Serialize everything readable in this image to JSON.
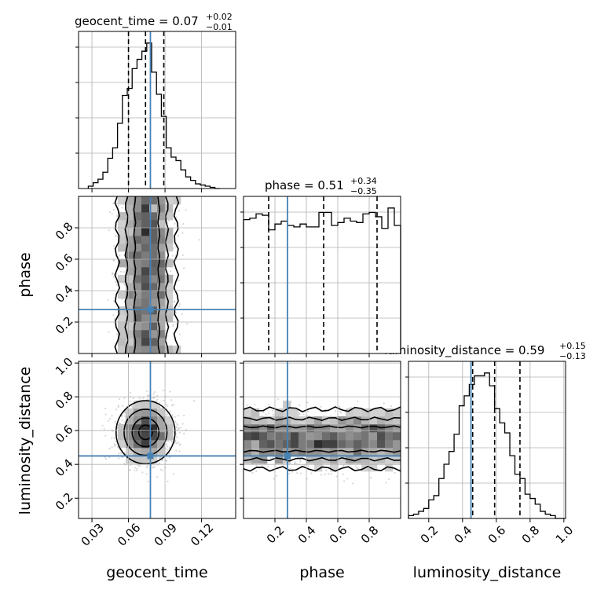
{
  "chart_data": {
    "type": "corner",
    "parameters": [
      "geocent_time",
      "phase",
      "luminosity_distance"
    ],
    "truths": {
      "geocent_time": 0.078,
      "phase": 0.28,
      "luminosity_distance": 0.45
    },
    "titles": {
      "geocent_time": {
        "label": "geocent_time = 0.07",
        "plus": "+0.02",
        "minus": "−0.01"
      },
      "phase": {
        "label": "phase = 0.51",
        "plus": "+0.34",
        "minus": "−0.35"
      },
      "luminosity_distance": {
        "label": "luminosity_distance = 0.59",
        "plus": "+0.15",
        "minus": "−0.13"
      }
    },
    "axis_labels": {
      "geocent_time": "geocent_time",
      "phase": "phase",
      "luminosity_distance": "luminosity_distance"
    },
    "ranges": {
      "geocent_time": [
        0.019,
        0.148
      ],
      "phase": [
        0.0,
        1.0
      ],
      "luminosity_distance": [
        0.08,
        1.01
      ]
    },
    "ticks": {
      "geocent_time": [
        "0.03",
        "0.06",
        "0.09",
        "0.12"
      ],
      "phase": [
        "0.2",
        "0.4",
        "0.6",
        "0.8"
      ],
      "luminosity_distance": [
        "0.2",
        "0.4",
        "0.6",
        "0.8",
        "1.0"
      ]
    },
    "quantiles": {
      "geocent_time": [
        0.06,
        0.074,
        0.089
      ],
      "phase": [
        0.16,
        0.51,
        0.85
      ],
      "luminosity_distance": [
        0.46,
        0.59,
        0.74
      ]
    },
    "histograms": {
      "geocent_time": {
        "edges": [
          0.027,
          0.031,
          0.035,
          0.039,
          0.043,
          0.047,
          0.051,
          0.055,
          0.059,
          0.063,
          0.067,
          0.071,
          0.075,
          0.079,
          0.083,
          0.087,
          0.091,
          0.095,
          0.099,
          0.103,
          0.107,
          0.111,
          0.115,
          0.119,
          0.123,
          0.127,
          0.131,
          0.135
        ],
        "counts": [
          2,
          5,
          8,
          14,
          26,
          35,
          56,
          80,
          86,
          103,
          111,
          118,
          125,
          100,
          81,
          62,
          35,
          27,
          24,
          16,
          10,
          7,
          4,
          3,
          2,
          1,
          0
        ]
      },
      "phase": {
        "edges": [
          0.0,
          0.04,
          0.08,
          0.12,
          0.16,
          0.2,
          0.24,
          0.28,
          0.32,
          0.36,
          0.4,
          0.44,
          0.48,
          0.52,
          0.56,
          0.6,
          0.64,
          0.68,
          0.72,
          0.76,
          0.8,
          0.84,
          0.88,
          0.92,
          0.96,
          1.0
        ],
        "counts": [
          0.92,
          0.93,
          0.96,
          0.95,
          0.85,
          0.89,
          0.91,
          0.88,
          0.87,
          0.89,
          0.87,
          0.87,
          0.97,
          0.97,
          0.88,
          0.9,
          0.93,
          0.91,
          0.9,
          0.96,
          0.97,
          0.94,
          0.86,
          1.0,
          0.88
        ]
      },
      "luminosity_distance": {
        "edges": [
          0.08,
          0.11,
          0.14,
          0.17,
          0.2,
          0.23,
          0.26,
          0.29,
          0.32,
          0.35,
          0.38,
          0.41,
          0.44,
          0.47,
          0.5,
          0.53,
          0.56,
          0.59,
          0.62,
          0.65,
          0.68,
          0.71,
          0.74,
          0.77,
          0.8,
          0.83,
          0.86,
          0.89,
          0.92,
          0.95,
          0.98,
          1.01
        ],
        "counts": [
          0.02,
          0.03,
          0.05,
          0.07,
          0.13,
          0.16,
          0.28,
          0.38,
          0.47,
          0.59,
          0.79,
          0.86,
          0.94,
          1.0,
          1.0,
          1.02,
          0.93,
          0.77,
          0.67,
          0.6,
          0.44,
          0.31,
          0.28,
          0.17,
          0.14,
          0.1,
          0.05,
          0.03,
          0.02,
          0.0,
          0.0
        ]
      }
    },
    "joint_modes": {
      "phase_vs_geocent_time": {
        "x_center": 0.075,
        "x_sigma": 0.011,
        "y_uniform": [
          0.0,
          1.0
        ]
      },
      "luminosity_distance_vs_geocent_time": {
        "x_center": 0.074,
        "x_sigma": 0.011,
        "y_center": 0.59,
        "y_sigma": 0.085
      },
      "luminosity_distance_vs_phase": {
        "x_uniform": [
          0.0,
          1.0
        ],
        "y_center": 0.55,
        "y_sigma": 0.08
      }
    },
    "colors": {
      "truth": "#4682b4",
      "hist": "#000000",
      "grid": "#b0b0b0",
      "points": "#bdbdbd"
    },
    "grid": true
  }
}
